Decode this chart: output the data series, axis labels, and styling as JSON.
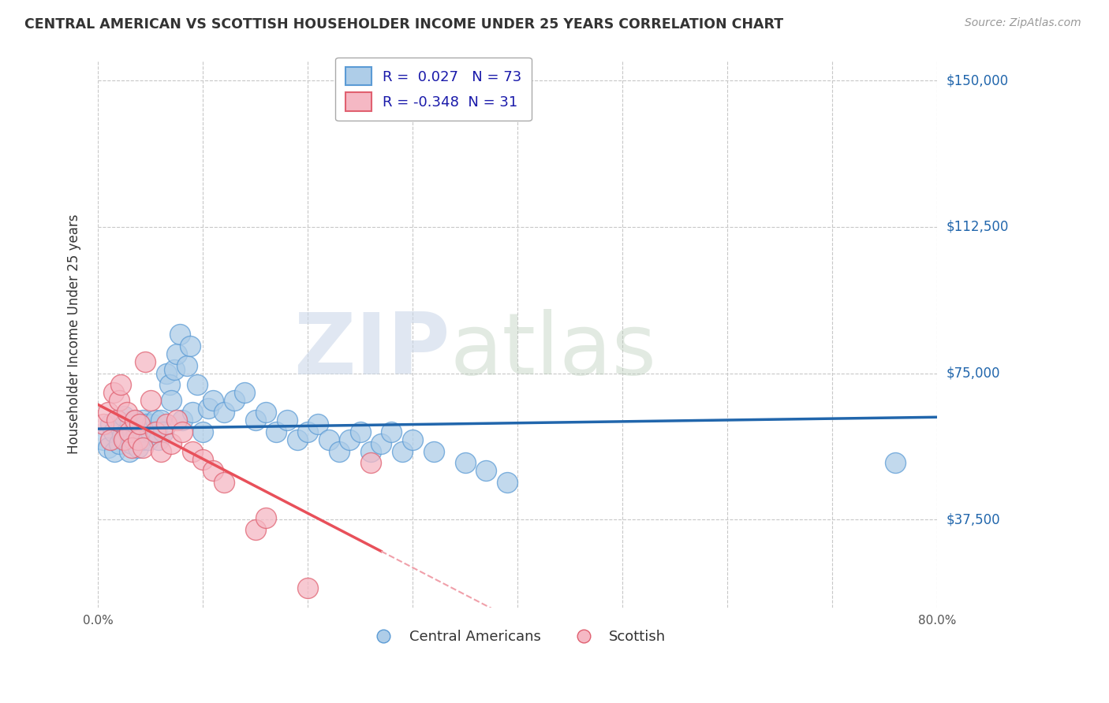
{
  "title": "CENTRAL AMERICAN VS SCOTTISH HOUSEHOLDER INCOME UNDER 25 YEARS CORRELATION CHART",
  "source": "Source: ZipAtlas.com",
  "ylabel": "Householder Income Under 25 years",
  "xlim": [
    0.0,
    0.8
  ],
  "ylim": [
    15000,
    155000
  ],
  "yticks": [
    37500,
    75000,
    112500,
    150000
  ],
  "ytick_labels": [
    "$37,500",
    "$75,000",
    "$112,500",
    "$150,000"
  ],
  "xticks": [
    0.0,
    0.1,
    0.2,
    0.3,
    0.4,
    0.5,
    0.6,
    0.7,
    0.8
  ],
  "xtick_labels": [
    "0.0%",
    "",
    "",
    "",
    "",
    "",
    "",
    "",
    "80.0%"
  ],
  "R_blue": 0.027,
  "N_blue": 73,
  "R_pink": -0.348,
  "N_pink": 31,
  "color_blue": "#aecde8",
  "color_pink": "#f5b8c4",
  "edge_blue": "#5b9bd5",
  "edge_pink": "#e06070",
  "line_blue": "#2166ac",
  "line_pink": "#e8505a",
  "line_pink_dash": "#f0a0aa",
  "blue_points_x": [
    0.005,
    0.01,
    0.012,
    0.015,
    0.016,
    0.018,
    0.02,
    0.022,
    0.023,
    0.025,
    0.026,
    0.028,
    0.03,
    0.031,
    0.032,
    0.033,
    0.034,
    0.035,
    0.036,
    0.037,
    0.038,
    0.04,
    0.041,
    0.042,
    0.043,
    0.045,
    0.046,
    0.048,
    0.05,
    0.052,
    0.055,
    0.056,
    0.058,
    0.06,
    0.062,
    0.065,
    0.068,
    0.07,
    0.073,
    0.075,
    0.078,
    0.08,
    0.085,
    0.088,
    0.09,
    0.095,
    0.1,
    0.105,
    0.11,
    0.12,
    0.13,
    0.14,
    0.15,
    0.16,
    0.17,
    0.18,
    0.19,
    0.2,
    0.21,
    0.22,
    0.23,
    0.24,
    0.25,
    0.26,
    0.27,
    0.28,
    0.29,
    0.3,
    0.32,
    0.35,
    0.37,
    0.39,
    0.76
  ],
  "blue_points_y": [
    58000,
    56000,
    62000,
    60000,
    55000,
    63000,
    57000,
    61000,
    59000,
    64000,
    58000,
    60000,
    55000,
    62000,
    57000,
    60000,
    58000,
    63000,
    61000,
    59000,
    56000,
    62000,
    60000,
    58000,
    63000,
    60000,
    62000,
    58000,
    60000,
    62000,
    63000,
    60000,
    58000,
    63000,
    60000,
    75000,
    72000,
    68000,
    76000,
    80000,
    85000,
    63000,
    77000,
    82000,
    65000,
    72000,
    60000,
    66000,
    68000,
    65000,
    68000,
    70000,
    63000,
    65000,
    60000,
    63000,
    58000,
    60000,
    62000,
    58000,
    55000,
    58000,
    60000,
    55000,
    57000,
    60000,
    55000,
    58000,
    55000,
    52000,
    50000,
    47000,
    52000
  ],
  "pink_points_x": [
    0.005,
    0.01,
    0.012,
    0.015,
    0.018,
    0.02,
    0.022,
    0.025,
    0.028,
    0.03,
    0.032,
    0.035,
    0.038,
    0.04,
    0.043,
    0.045,
    0.05,
    0.055,
    0.06,
    0.065,
    0.07,
    0.075,
    0.08,
    0.09,
    0.1,
    0.11,
    0.12,
    0.15,
    0.16,
    0.2,
    0.26
  ],
  "pink_points_y": [
    62000,
    65000,
    58000,
    70000,
    63000,
    68000,
    72000,
    58000,
    65000,
    60000,
    56000,
    63000,
    58000,
    62000,
    56000,
    78000,
    68000,
    60000,
    55000,
    62000,
    57000,
    63000,
    60000,
    55000,
    53000,
    50000,
    47000,
    35000,
    38000,
    20000,
    52000
  ]
}
